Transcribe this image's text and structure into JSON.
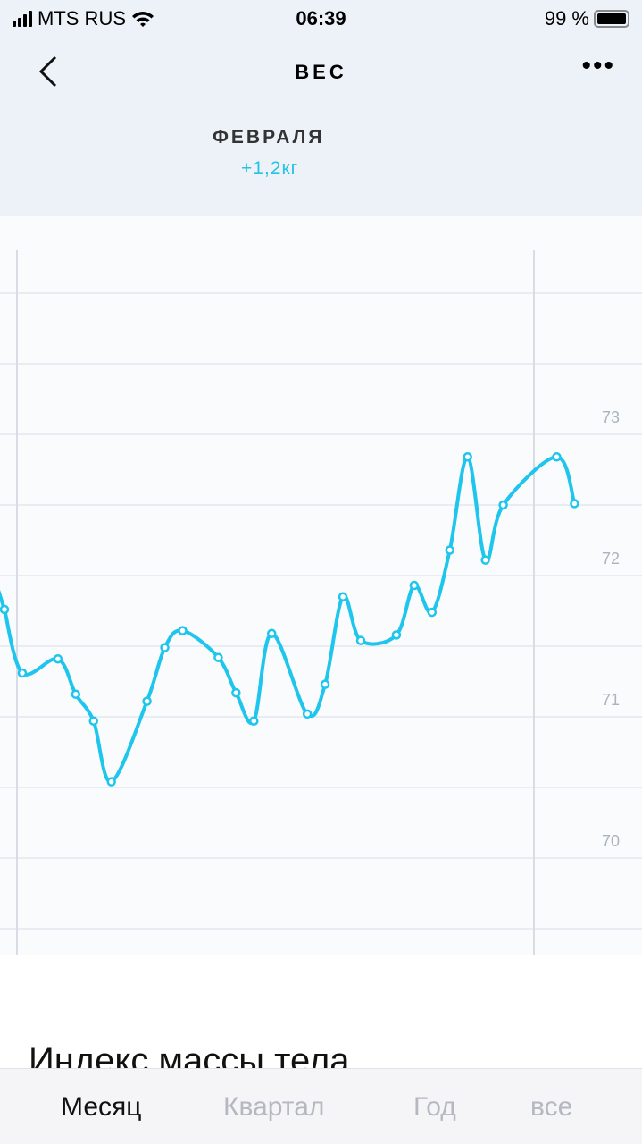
{
  "status": {
    "carrier": "MTS RUS",
    "time": "06:39",
    "battery": "99 %"
  },
  "header": {
    "title": "ВЕС",
    "period": "ФЕВРАЛЯ",
    "change": "+1,2кг"
  },
  "chart_data": {
    "type": "line",
    "color": "#1ec5ec",
    "ylim": [
      69.5,
      74.5
    ],
    "yticks": [
      {
        "value": 73,
        "label": "73"
      },
      {
        "value": 72,
        "label": "72"
      },
      {
        "value": 71,
        "label": "71"
      },
      {
        "value": 70,
        "label": "70"
      }
    ],
    "grid": true,
    "x": [
      0,
      1,
      3,
      4,
      5,
      6,
      8,
      9,
      10,
      12,
      13,
      14,
      15,
      17,
      18,
      19,
      20,
      22,
      23,
      24,
      25,
      26,
      27,
      28,
      31,
      32
    ],
    "values": [
      71.76,
      71.31,
      71.41,
      71.16,
      70.97,
      70.54,
      71.11,
      71.49,
      71.61,
      71.42,
      71.17,
      70.97,
      71.59,
      71.02,
      71.23,
      71.85,
      71.54,
      71.58,
      71.93,
      71.74,
      72.18,
      72.84,
      72.11,
      72.5,
      72.84,
      72.51
    ]
  },
  "section_title": "Индекс массы тела",
  "tabs": [
    {
      "label": "Месяц",
      "active": true
    },
    {
      "label": "Квартал"
    },
    {
      "label": "Год"
    },
    {
      "label": "все"
    }
  ]
}
